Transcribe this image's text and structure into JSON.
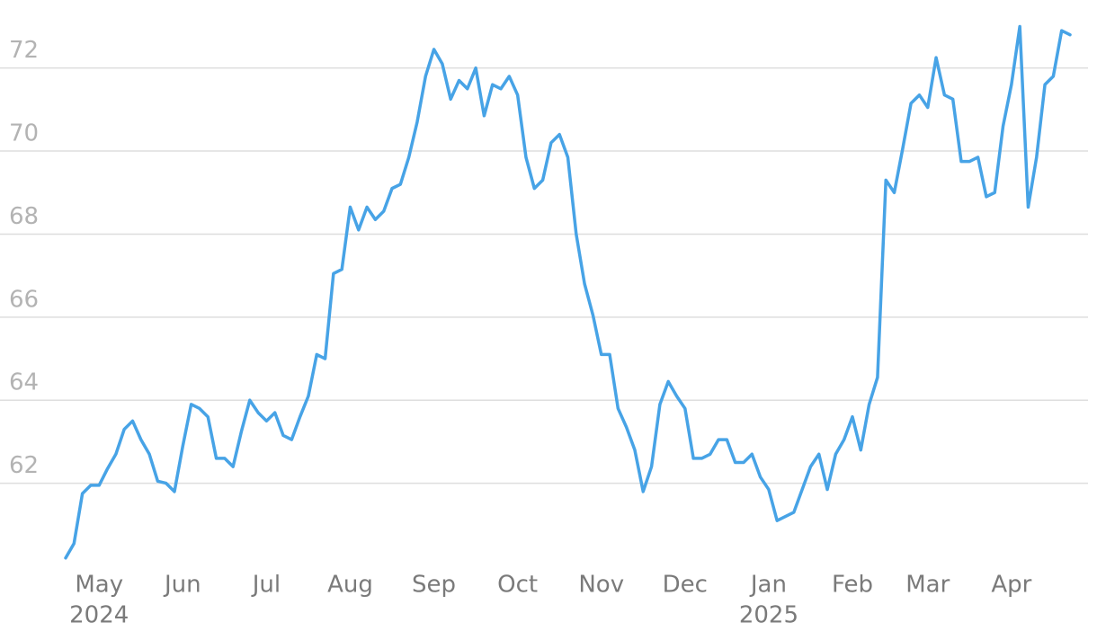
{
  "chart_data": {
    "type": "line",
    "categories": [
      null,
      null,
      null,
      null,
      "May",
      null,
      null,
      null,
      null,
      null,
      null,
      null,
      null,
      null,
      "Jun",
      null,
      null,
      null,
      null,
      null,
      null,
      null,
      null,
      null,
      "Jul",
      null,
      null,
      null,
      null,
      null,
      null,
      null,
      null,
      null,
      "Aug",
      null,
      null,
      null,
      null,
      null,
      null,
      null,
      null,
      null,
      "Sep",
      null,
      null,
      null,
      null,
      null,
      null,
      null,
      null,
      null,
      "Oct",
      null,
      null,
      null,
      null,
      null,
      null,
      null,
      null,
      null,
      "Nov",
      null,
      null,
      null,
      null,
      null,
      null,
      null,
      null,
      null,
      "Dec",
      null,
      null,
      null,
      null,
      null,
      null,
      null,
      null,
      null,
      "Jan",
      null,
      null,
      null,
      null,
      null,
      null,
      null,
      null,
      null,
      "Feb",
      null,
      null,
      null,
      null,
      null,
      null,
      null,
      null,
      "Mar",
      null,
      null,
      null,
      null,
      null,
      null,
      null,
      null,
      null,
      "Apr",
      null,
      null,
      null,
      null,
      null,
      null,
      null
    ],
    "category_years": [
      null,
      null,
      null,
      null,
      "2024",
      null,
      null,
      null,
      null,
      null,
      null,
      null,
      null,
      null,
      null,
      null,
      null,
      null,
      null,
      null,
      null,
      null,
      null,
      null,
      null,
      null,
      null,
      null,
      null,
      null,
      null,
      null,
      null,
      null,
      null,
      null,
      null,
      null,
      null,
      null,
      null,
      null,
      null,
      null,
      null,
      null,
      null,
      null,
      null,
      null,
      null,
      null,
      null,
      null,
      null,
      null,
      null,
      null,
      null,
      null,
      null,
      null,
      null,
      null,
      null,
      null,
      null,
      null,
      null,
      null,
      null,
      null,
      null,
      null,
      null,
      null,
      null,
      null,
      null,
      null,
      null,
      null,
      null,
      null,
      "2025",
      null,
      null,
      null,
      null,
      null,
      null,
      null,
      null,
      null,
      null,
      null,
      null,
      null,
      null,
      null,
      null,
      null,
      null,
      null,
      null,
      null,
      null,
      null,
      null,
      null,
      null,
      null,
      null,
      null,
      null,
      null,
      null,
      null,
      null,
      null,
      null,
      null,
      null,
      null,
      null,
      null
    ],
    "values": [
      60.2,
      60.55,
      61.75,
      61.95,
      61.95,
      62.35,
      62.7,
      63.3,
      63.5,
      63.05,
      62.7,
      62.05,
      62.0,
      61.8,
      62.9,
      63.9,
      63.8,
      63.6,
      62.6,
      62.6,
      62.4,
      63.25,
      64.0,
      63.7,
      63.5,
      63.7,
      63.15,
      63.05,
      63.6,
      64.1,
      65.1,
      65.0,
      67.05,
      67.15,
      68.65,
      68.1,
      68.65,
      68.35,
      68.55,
      69.1,
      69.2,
      69.85,
      70.7,
      71.8,
      72.45,
      72.1,
      71.25,
      71.7,
      71.5,
      72.0,
      70.85,
      71.6,
      71.5,
      71.8,
      71.35,
      69.85,
      69.1,
      69.3,
      70.2,
      70.4,
      69.85,
      68.0,
      66.8,
      66.05,
      65.1,
      65.1,
      63.8,
      63.35,
      62.8,
      61.8,
      62.4,
      63.9,
      64.45,
      64.1,
      63.8,
      62.6,
      62.6,
      62.7,
      63.05,
      63.05,
      62.5,
      62.5,
      62.7,
      62.15,
      61.85,
      61.1,
      61.2,
      61.3,
      61.85,
      62.4,
      62.7,
      61.85,
      62.7,
      63.05,
      63.6,
      62.8,
      63.9,
      64.55,
      69.3,
      69.0,
      70.05,
      71.15,
      71.35,
      71.05,
      72.25,
      71.35,
      71.25,
      69.75,
      69.75,
      69.85,
      68.9,
      69.0,
      70.6,
      71.6,
      73.0,
      68.65,
      69.85,
      71.6,
      71.8,
      72.9,
      72.8
    ],
    "color": "#47a3e6",
    "ylim": [
      60,
      73.4
    ],
    "yticks": [
      62,
      64,
      66,
      68,
      70,
      72
    ],
    "grid": true
  }
}
